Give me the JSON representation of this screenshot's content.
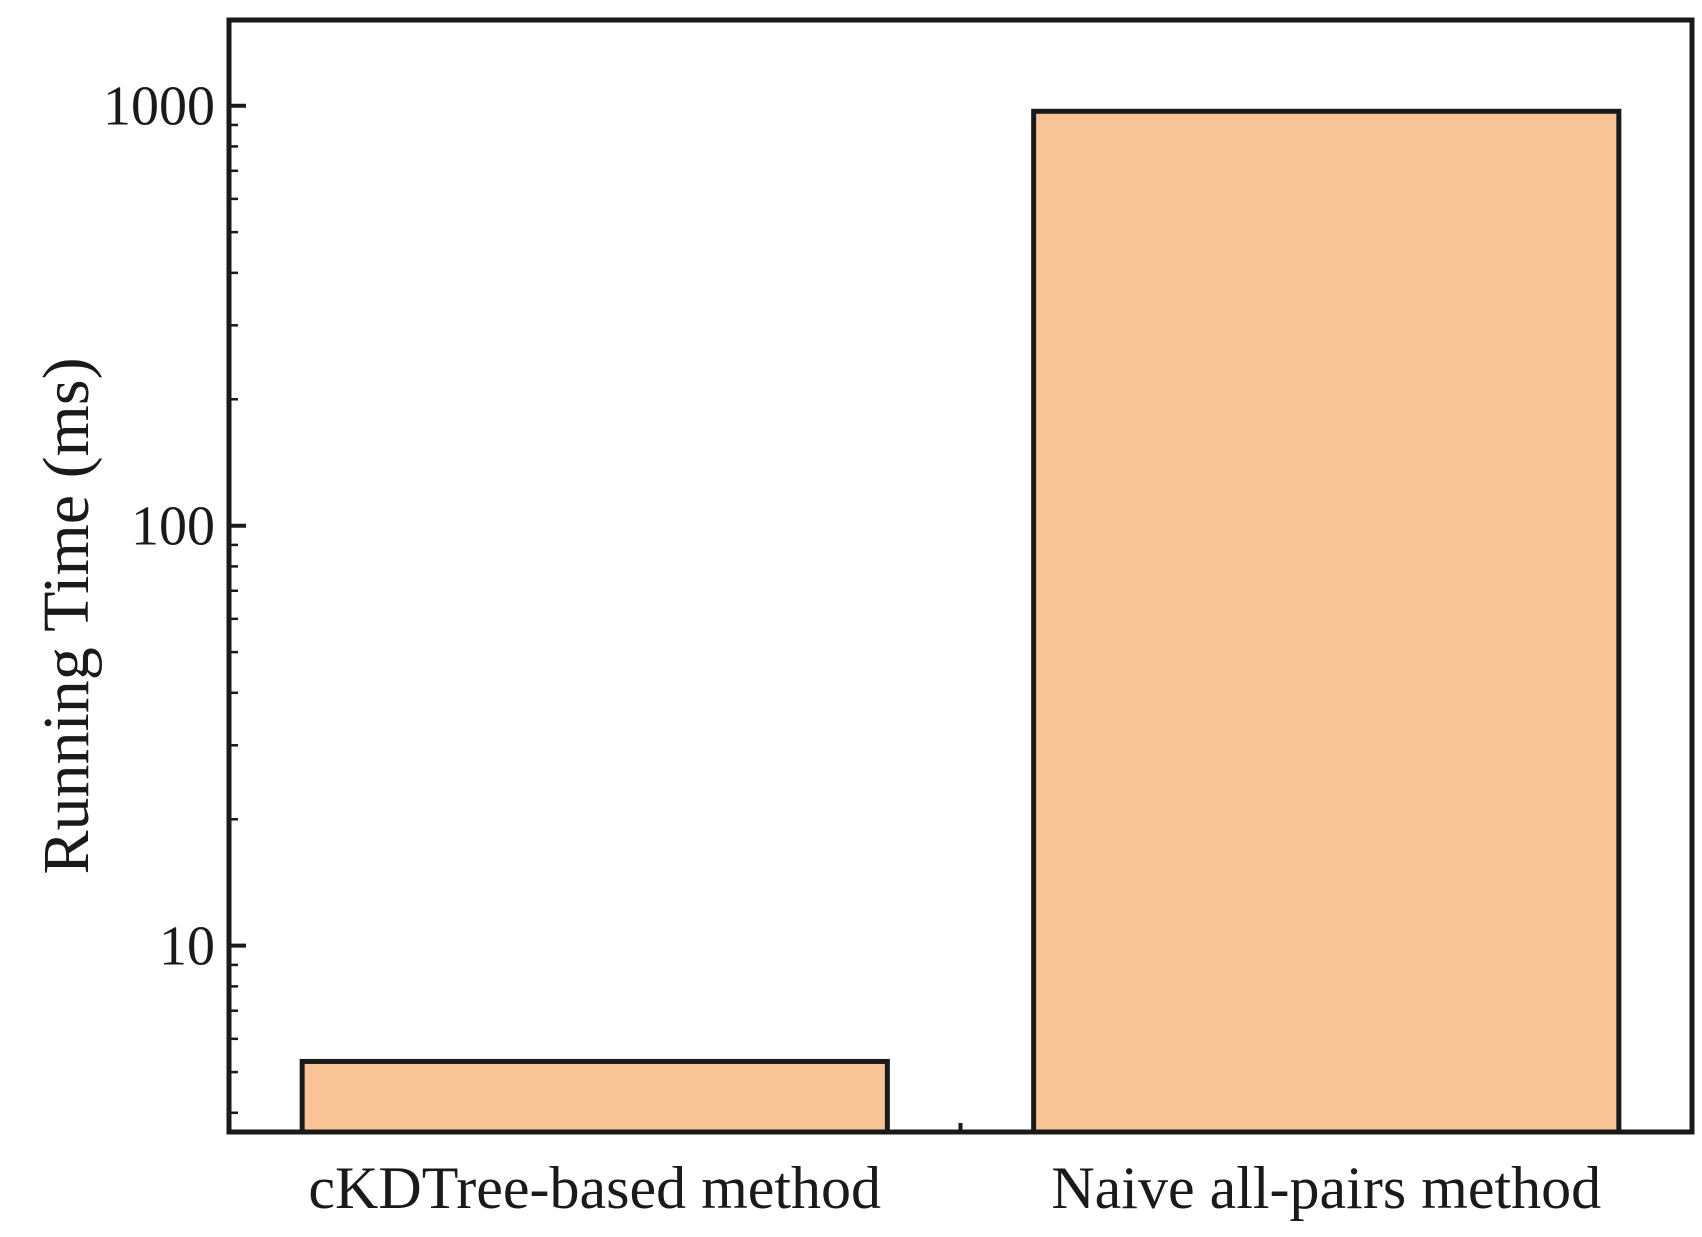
{
  "chart_data": {
    "type": "bar",
    "categories": [
      "cKDTree-based method",
      "Naive all-pairs method"
    ],
    "values": [
      5.3,
      970
    ],
    "title": "",
    "xlabel": "",
    "ylabel": "Running Time (ms)",
    "yscale": "log",
    "ylim": [
      3.6,
      1600
    ],
    "yticks": [
      10,
      100,
      1000
    ],
    "ytick_labels": [
      "10",
      "100",
      "1000"
    ],
    "grid": false,
    "legend": "none",
    "bar_color": "#f8c496",
    "edge_color": "#1a1a1a"
  }
}
